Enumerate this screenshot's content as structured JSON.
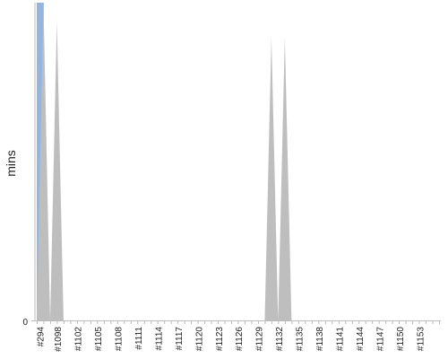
{
  "chart_data": {
    "type": "area",
    "title": "",
    "xlabel": "",
    "ylabel": "mins",
    "y_tick_labels": [
      "0"
    ],
    "grid": false,
    "legend": "none",
    "colors": {
      "highlight": "#93B5E0",
      "area": "#BEBEBE",
      "axis": "#BBBBBB"
    },
    "x_tick_labels": [
      "#294",
      "#1098",
      "#1102",
      "#1105",
      "#1108",
      "#1111",
      "#1114",
      "#1117",
      "#1120",
      "#1123",
      "#1126",
      "#1129",
      "#1132",
      "#1135",
      "#1138",
      "#1141",
      "#1144",
      "#1147",
      "#1150",
      "#1153"
    ],
    "build_count": 61,
    "series": [
      {
        "values": [
          1.0,
          1.0,
          0,
          0.94,
          0,
          0,
          0,
          0,
          0,
          0,
          0,
          0,
          0,
          0,
          0,
          0,
          0,
          0,
          0,
          0,
          0,
          0,
          0,
          0,
          0,
          0,
          0,
          0,
          0,
          0,
          0,
          0,
          0,
          0,
          0,
          0.89,
          0,
          0.89,
          0,
          0,
          0,
          0,
          0,
          0,
          0,
          0,
          0,
          0,
          0,
          0,
          0,
          0,
          0,
          0,
          0,
          0,
          0,
          0,
          0,
          0,
          0
        ]
      }
    ],
    "highlight_index": 0,
    "ylim": [
      0,
      1.0
    ]
  }
}
